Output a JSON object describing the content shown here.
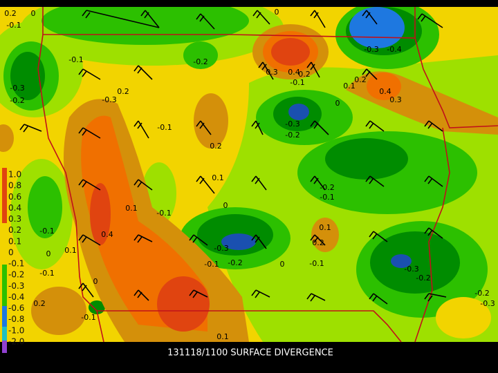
{
  "caption": "131118/1100 SURFACE DIVERGENCE",
  "colorbar": {
    "labels": [
      "1.0",
      "0.8",
      "0.6",
      "0.4",
      "0.3",
      "0.2",
      "0.1",
      "0",
      "-0.1",
      "-0.2",
      "-0.3",
      "-0.4",
      "-0.6",
      "-0.8",
      "-1.0",
      "-2.0"
    ]
  },
  "contour_labels": [
    "0.2",
    "0",
    "-0.1",
    "-0.1",
    "-0.3",
    "-0.2",
    "0.2",
    "-0.3",
    "-0.1",
    "0",
    "-0.2",
    "0.3",
    "0.4",
    "0.2",
    "-0.1",
    "-0.3",
    "-0.4",
    "0.1",
    "0.2",
    "0.4",
    "0.3",
    "0",
    "-0.3",
    "-0.2",
    "0.2",
    "0.1",
    "0",
    "0.1",
    "-0.1",
    "0.4",
    "-0.1",
    "0",
    "0.1",
    "-0.1",
    "0.2",
    "0",
    "-0.1",
    "-0.3",
    "-0.1",
    "-0.2",
    "0",
    "-0.1",
    "0.2",
    "0.1",
    "-0.2",
    "-0.1",
    "-0.3",
    "-0.2",
    "-0.2",
    "-0.3",
    "0.1"
  ]
}
